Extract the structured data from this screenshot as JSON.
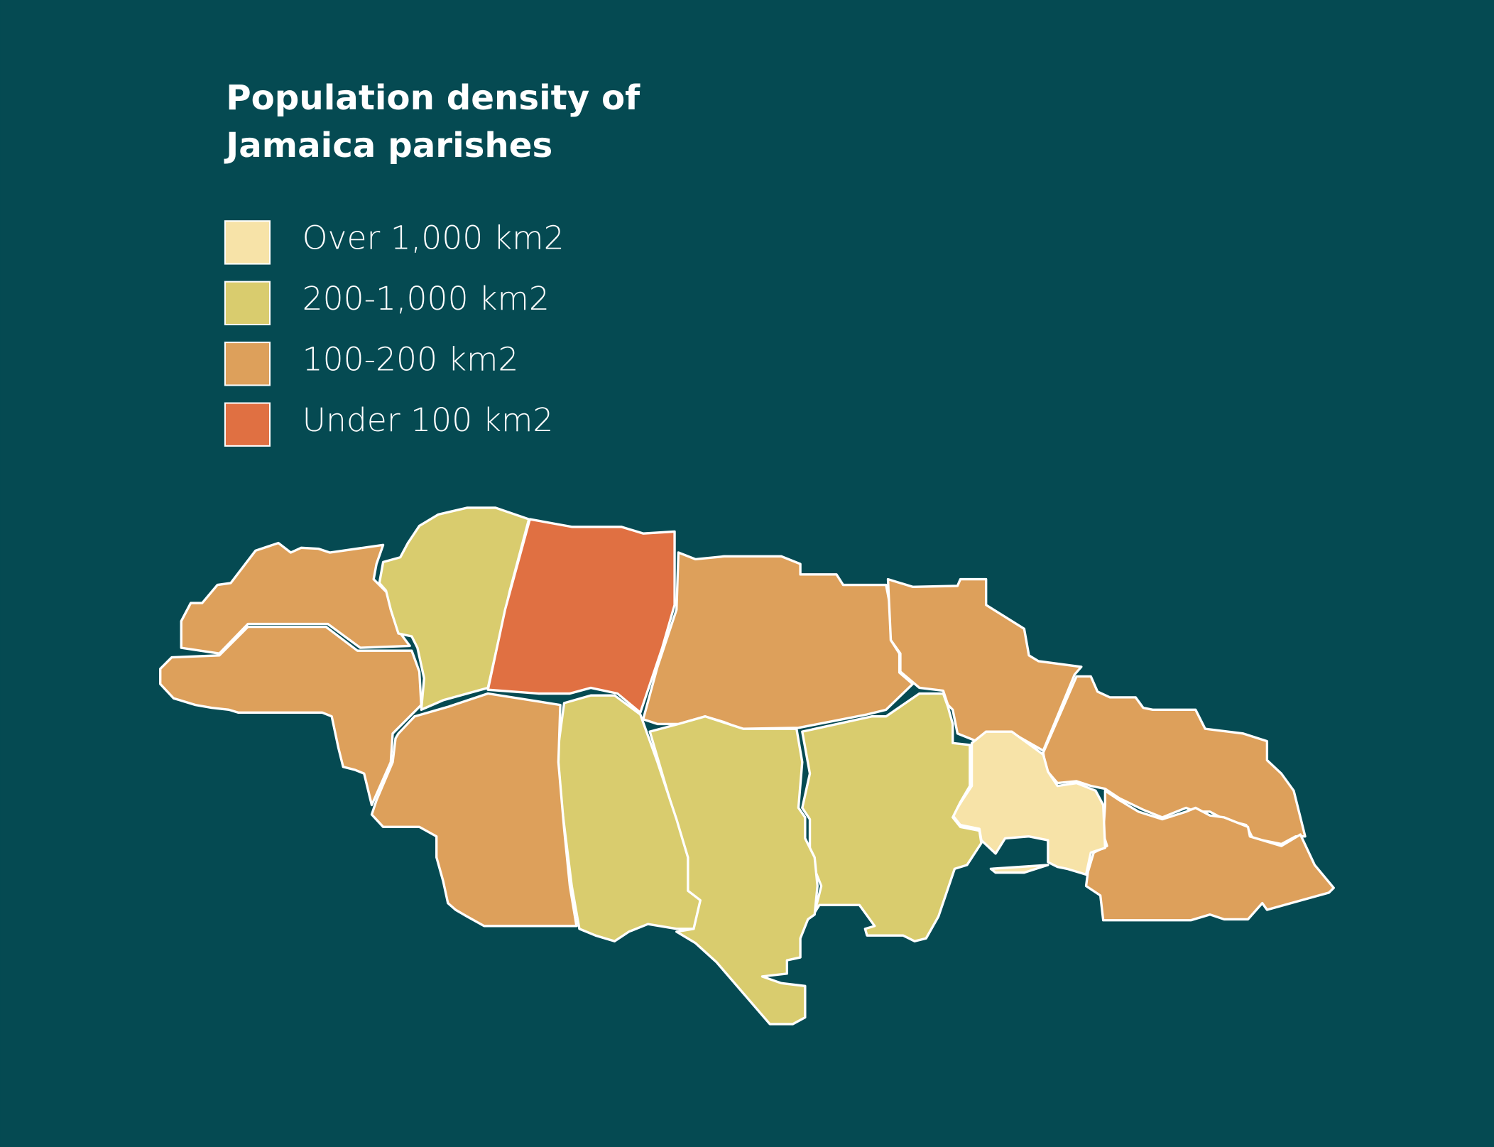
{
  "title": [
    "Population density of",
    "Jamaica parishes"
  ],
  "legend": [
    {
      "label": "Over 1,000 km2",
      "color": "#f7e3a8"
    },
    {
      "label": "200-1,000 km2",
      "color": "#d9cc6e"
    },
    {
      "label": "100-200 km2",
      "color": "#dda05b"
    },
    {
      "label": "Under 100 km2",
      "color": "#e07042"
    }
  ]
}
